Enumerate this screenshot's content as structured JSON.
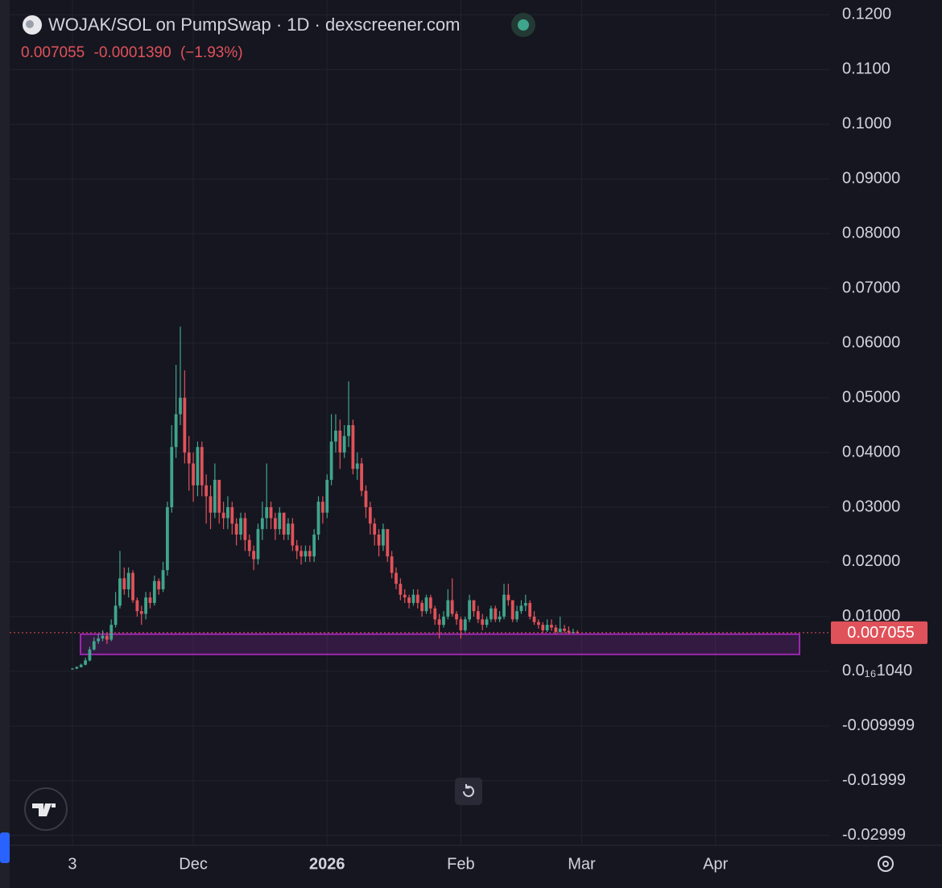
{
  "chart_data": {
    "type": "candlestick",
    "title": "WOJAK/SOL on PumpSwap · 1D · dexscreener.com",
    "price": 0.007055,
    "change": {
      "value": -0.000139,
      "label": "-0.0001390"
    },
    "change_pct": {
      "value": -1.93,
      "label": "(−1.93%)"
    },
    "last_price": 0.007055,
    "up_color": "#3fa58c",
    "down_color": "#e0525a",
    "zone": [
      0.0031,
      0.0068
    ],
    "zone_color": "#9c27b0",
    "ylim": [
      -0.0318,
      0.1227
    ],
    "yticks": [
      {
        "value": 0.12,
        "label": "0.1200"
      },
      {
        "value": 0.11,
        "label": "0.1100"
      },
      {
        "value": 0.1,
        "label": "0.1000"
      },
      {
        "value": 0.09,
        "label": "0.09000"
      },
      {
        "value": 0.08,
        "label": "0.08000"
      },
      {
        "value": 0.07,
        "label": "0.07000"
      },
      {
        "value": 0.06,
        "label": "0.06000"
      },
      {
        "value": 0.05,
        "label": "0.05000"
      },
      {
        "value": 0.04,
        "label": "0.04000"
      },
      {
        "value": 0.03,
        "label": "0.03000"
      },
      {
        "value": 0.02,
        "label": "0.02000"
      },
      {
        "value": 0.01,
        "label": "0.01000"
      },
      {
        "value": 1.04e-17,
        "label": "0.0₁₆1040"
      },
      -0.009999,
      -0.01999,
      -0.02999
    ],
    "grid": true,
    "categories": [
      "3",
      null,
      null,
      null,
      null,
      null,
      null,
      null,
      null,
      null,
      null,
      null,
      null,
      null,
      null,
      null,
      null,
      null,
      null,
      null,
      null,
      null,
      null,
      null,
      null,
      null,
      null,
      null,
      "Dec",
      null,
      null,
      null,
      null,
      null,
      null,
      null,
      null,
      null,
      null,
      null,
      null,
      null,
      null,
      null,
      null,
      null,
      null,
      null,
      null,
      null,
      null,
      null,
      null,
      null,
      null,
      null,
      null,
      null,
      null,
      "2026",
      null,
      null,
      null,
      null,
      null,
      null,
      null,
      null,
      null,
      null,
      null,
      null,
      null,
      null,
      null,
      null,
      null,
      null,
      null,
      null,
      null,
      null,
      null,
      null,
      null,
      null,
      null,
      null,
      null,
      null,
      "Feb",
      null,
      null,
      null,
      null,
      null,
      null,
      null,
      null,
      null,
      null,
      null,
      null,
      null,
      null,
      null,
      null,
      null,
      null,
      null,
      null,
      null,
      null,
      null,
      null,
      null,
      null,
      null,
      "Mar",
      null,
      null,
      null,
      null,
      null,
      null,
      null,
      null,
      null,
      null,
      null,
      null,
      null,
      null,
      null,
      null,
      null,
      null,
      null,
      null,
      null,
      null,
      null,
      null,
      null,
      null,
      null,
      null,
      null,
      null,
      "Apr",
      null,
      null,
      null,
      null,
      null,
      null,
      null,
      null,
      null,
      null,
      null,
      null,
      null,
      null,
      null,
      null,
      null,
      null,
      null,
      null,
      null,
      null,
      null,
      null,
      null,
      null
    ],
    "open": [
      0.0004,
      0.0005,
      0.0008,
      0.0012,
      0.002,
      0.004,
      0.0055,
      0.006,
      0.0065,
      0.0058,
      0.0085,
      0.012,
      0.017,
      0.015,
      0.018,
      0.013,
      0.011,
      0.0105,
      0.0135,
      0.0125,
      0.0165,
      0.015,
      0.0185,
      0.03,
      0.041,
      0.047,
      0.05,
      0.04,
      0.038,
      0.034,
      0.041,
      0.034,
      0.032,
      0.029,
      0.035,
      0.029,
      0.028,
      0.03,
      0.027,
      0.025,
      0.028,
      0.024,
      0.022,
      0.0205,
      0.026,
      0.028,
      0.03,
      0.028,
      0.026,
      0.029,
      0.025,
      0.027,
      0.023,
      0.022,
      0.021,
      0.022,
      0.021,
      0.025,
      0.031,
      0.029,
      0.035,
      0.042,
      0.044,
      0.04,
      0.043,
      0.045,
      0.037,
      0.038,
      0.033,
      0.03,
      0.027,
      0.025,
      0.023,
      0.026,
      0.021,
      0.018,
      0.016,
      0.014,
      0.0135,
      0.0125,
      0.014,
      0.0125,
      0.011,
      0.0135,
      0.0115,
      0.0095,
      0.0085,
      0.01,
      0.013,
      0.0105,
      0.0095,
      0.0075,
      0.0095,
      0.013,
      0.011,
      0.0095,
      0.0085,
      0.0095,
      0.0115,
      0.0095,
      0.01,
      0.014,
      0.013,
      0.0095,
      0.011,
      0.012,
      0.0125,
      0.01,
      0.009,
      0.0085,
      0.0075,
      0.0085,
      0.008,
      0.0072,
      0.0078,
      0.0074,
      0.0071,
      0.0072,
      null,
      null,
      null,
      null,
      null,
      null,
      null,
      null,
      null,
      null,
      null,
      null,
      null,
      null,
      null,
      null,
      null,
      null,
      null,
      null,
      null,
      null,
      null,
      null,
      null,
      null,
      null,
      null,
      null,
      null,
      null,
      null,
      null,
      null,
      null,
      null,
      null,
      null,
      null,
      null,
      null,
      null,
      null,
      null,
      null,
      null,
      null,
      null,
      null,
      null,
      null,
      null,
      null,
      null,
      null,
      null,
      null,
      null
    ],
    "high": [
      0.0006,
      0.0009,
      0.0014,
      0.0025,
      0.0045,
      0.0062,
      0.0068,
      0.0075,
      0.007,
      0.0095,
      0.0145,
      0.022,
      0.019,
      0.019,
      0.0185,
      0.0135,
      0.012,
      0.0145,
      0.0145,
      0.0175,
      0.017,
      0.02,
      0.031,
      0.045,
      0.056,
      0.063,
      0.055,
      0.043,
      0.04,
      0.042,
      0.042,
      0.036,
      0.034,
      0.038,
      0.035,
      0.031,
      0.032,
      0.031,
      0.028,
      0.029,
      0.029,
      0.025,
      0.023,
      0.027,
      0.031,
      0.038,
      0.031,
      0.029,
      0.03,
      0.029,
      0.028,
      0.028,
      0.024,
      0.023,
      0.023,
      0.023,
      0.026,
      0.032,
      0.032,
      0.036,
      0.047,
      0.047,
      0.046,
      0.045,
      0.053,
      0.046,
      0.04,
      0.039,
      0.034,
      0.031,
      0.028,
      0.026,
      0.027,
      0.026,
      0.022,
      0.019,
      0.017,
      0.015,
      0.014,
      0.015,
      0.015,
      0.013,
      0.014,
      0.014,
      0.012,
      0.0105,
      0.011,
      0.015,
      0.017,
      0.011,
      0.01,
      0.01,
      0.014,
      0.013,
      0.012,
      0.0105,
      0.01,
      0.012,
      0.012,
      0.011,
      0.016,
      0.016,
      0.013,
      0.012,
      0.013,
      0.014,
      0.013,
      0.011,
      0.0095,
      0.009,
      0.0095,
      0.0095,
      0.0085,
      0.01,
      0.0085,
      0.0082,
      0.0078,
      0.0075,
      null,
      null,
      null,
      null,
      null,
      null,
      null,
      null,
      null,
      null,
      null,
      null,
      null,
      null,
      null,
      null,
      null,
      null,
      null,
      null,
      null,
      null,
      null,
      null,
      null,
      null,
      null,
      null,
      null,
      null,
      null,
      null,
      null,
      null,
      null,
      null,
      null,
      null,
      null,
      null,
      null,
      null,
      null,
      null,
      null,
      null,
      null,
      null,
      null,
      null,
      null,
      null,
      null,
      null,
      null,
      null,
      null,
      null
    ],
    "low": [
      0.0003,
      0.0004,
      0.0007,
      0.0011,
      0.0018,
      0.0038,
      0.005,
      0.0055,
      0.005,
      0.0055,
      0.008,
      0.0115,
      0.014,
      0.0135,
      0.0125,
      0.01,
      0.0085,
      0.0095,
      0.0115,
      0.012,
      0.014,
      0.0145,
      0.0175,
      0.029,
      0.039,
      0.045,
      0.038,
      0.033,
      0.031,
      0.032,
      0.032,
      0.027,
      0.026,
      0.028,
      0.027,
      0.026,
      0.026,
      0.025,
      0.023,
      0.024,
      0.022,
      0.021,
      0.0185,
      0.0195,
      0.024,
      0.026,
      0.026,
      0.024,
      0.025,
      0.024,
      0.024,
      0.022,
      0.0205,
      0.0195,
      0.02,
      0.02,
      0.02,
      0.024,
      0.027,
      0.028,
      0.034,
      0.04,
      0.037,
      0.039,
      0.041,
      0.036,
      0.035,
      0.032,
      0.028,
      0.025,
      0.023,
      0.021,
      0.022,
      0.02,
      0.017,
      0.015,
      0.013,
      0.0125,
      0.0115,
      0.012,
      0.0115,
      0.01,
      0.0105,
      0.0105,
      0.0085,
      0.006,
      0.008,
      0.0095,
      0.01,
      0.0085,
      0.006,
      0.0072,
      0.009,
      0.01,
      0.0088,
      0.0075,
      0.008,
      0.009,
      0.009,
      0.009,
      0.0095,
      0.012,
      0.009,
      0.009,
      0.0105,
      0.011,
      0.0095,
      0.0085,
      0.0078,
      0.007,
      0.0072,
      0.0074,
      0.0068,
      0.007,
      0.007,
      0.0068,
      0.0069,
      0.0069,
      null,
      null,
      null,
      null,
      null,
      null,
      null,
      null,
      null,
      null,
      null,
      null,
      null,
      null,
      null,
      null,
      null,
      null,
      null,
      null,
      null,
      null,
      null,
      null,
      null,
      null,
      null,
      null,
      null,
      null,
      null,
      null,
      null,
      null,
      null,
      null,
      null,
      null,
      null,
      null,
      null,
      null,
      null,
      null,
      null,
      null,
      null,
      null,
      null,
      null,
      null,
      null,
      null,
      null,
      null,
      null,
      null,
      null
    ],
    "close": [
      0.0005,
      0.0008,
      0.0012,
      0.002,
      0.004,
      0.0055,
      0.006,
      0.0065,
      0.0058,
      0.0085,
      0.012,
      0.017,
      0.015,
      0.018,
      0.013,
      0.011,
      0.0105,
      0.0135,
      0.0125,
      0.0165,
      0.015,
      0.0185,
      0.03,
      0.041,
      0.047,
      0.05,
      0.04,
      0.038,
      0.034,
      0.041,
      0.034,
      0.032,
      0.029,
      0.035,
      0.029,
      0.028,
      0.03,
      0.027,
      0.025,
      0.028,
      0.024,
      0.022,
      0.0205,
      0.026,
      0.028,
      0.03,
      0.028,
      0.026,
      0.029,
      0.025,
      0.027,
      0.023,
      0.022,
      0.021,
      0.022,
      0.021,
      0.025,
      0.031,
      0.029,
      0.035,
      0.042,
      0.044,
      0.04,
      0.043,
      0.045,
      0.037,
      0.038,
      0.033,
      0.03,
      0.027,
      0.025,
      0.023,
      0.026,
      0.021,
      0.018,
      0.016,
      0.014,
      0.0135,
      0.0125,
      0.014,
      0.0125,
      0.011,
      0.0135,
      0.0115,
      0.0095,
      0.0085,
      0.01,
      0.013,
      0.0105,
      0.0095,
      0.0075,
      0.0095,
      0.013,
      0.011,
      0.0095,
      0.0085,
      0.0095,
      0.0115,
      0.0095,
      0.01,
      0.014,
      0.013,
      0.0095,
      0.011,
      0.012,
      0.0125,
      0.01,
      0.009,
      0.0085,
      0.0075,
      0.0085,
      0.008,
      0.0072,
      0.0078,
      0.0074,
      0.0071,
      0.0072,
      0.007055,
      null,
      null,
      null,
      null,
      null,
      null,
      null,
      null,
      null,
      null,
      null,
      null,
      null,
      null,
      null,
      null,
      null,
      null,
      null,
      null,
      null,
      null,
      null,
      null,
      null,
      null,
      null,
      null,
      null,
      null,
      null,
      null,
      null,
      null,
      null,
      null,
      null,
      null,
      null,
      null,
      null,
      null,
      null,
      null,
      null,
      null,
      null,
      null,
      null,
      null,
      null,
      null,
      null,
      null,
      null,
      null,
      null,
      null
    ]
  }
}
